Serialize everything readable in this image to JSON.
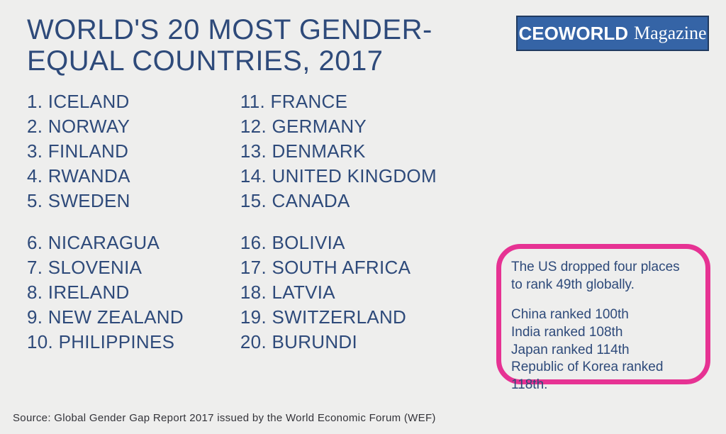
{
  "title": "WORLD'S 20 MOST GENDER-EQUAL COUNTRIES, 2017",
  "logo": {
    "bold": "CEOWORLD",
    "thin": "Magazine"
  },
  "colors": {
    "text": "#2e4a7a",
    "background": "#eeeeed",
    "logo_bg": "#3564a6",
    "logo_border": "#203a60",
    "callout_border": "#e63293"
  },
  "typography": {
    "title_fontsize": 40,
    "list_fontsize": 26,
    "callout_fontsize": 19,
    "source_fontsize": 15
  },
  "list": {
    "col1_top": [
      "1. ICELAND",
      "2. NORWAY",
      "3. FINLAND",
      "4. RWANDA",
      "5. SWEDEN"
    ],
    "col1_bottom": [
      "6. NICARAGUA",
      "7. SLOVENIA",
      "8. IRELAND",
      "9. NEW ZEALAND",
      "10. PHILIPPINES"
    ],
    "col2_top": [
      "11. FRANCE",
      "12. GERMANY",
      "13. DENMARK",
      "14. UNITED KINGDOM",
      "15. CANADA"
    ],
    "col2_bottom": [
      "16. BOLIVIA",
      "17. SOUTH AFRICA",
      "18. LATVIA",
      "19. SWITZERLAND",
      "20. BURUNDI"
    ]
  },
  "callout": {
    "block1": [
      "The US dropped four places",
      "to rank 49th globally."
    ],
    "block2": [
      "China ranked 100th",
      "India ranked 108th",
      "Japan ranked 114th",
      "Republic of Korea ranked 118th."
    ]
  },
  "source": "Source: Global Gender Gap Report 2017 issued by the World Economic Forum (WEF)"
}
